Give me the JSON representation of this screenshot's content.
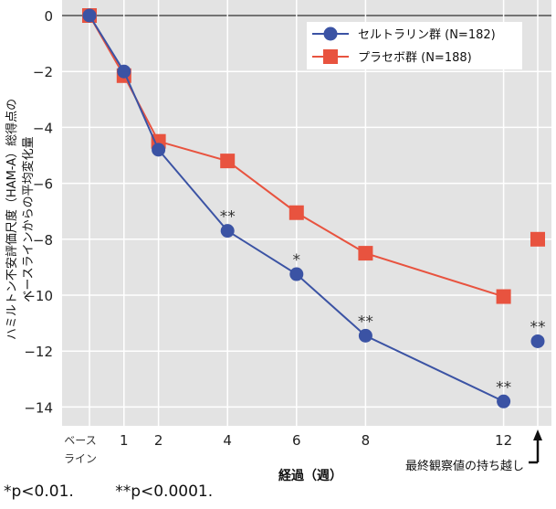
{
  "chart_data": {
    "type": "line",
    "ylabel_line1": "ハミルトン不安評価尺度（HAM-A）総得点の",
    "ylabel_line2": "ベースラインからの平均変化量",
    "xlabel": "経過（週）",
    "x": [
      0,
      1,
      2,
      4,
      6,
      8,
      12
    ],
    "x_tick_labels": [
      "ベース",
      "1",
      "2",
      "4",
      "6",
      "8",
      "12"
    ],
    "x_baseline_label_line2": "ライン",
    "locf_label": "最終観察値の持ち越し",
    "ylim": [
      -15,
      0.5
    ],
    "y_ticks": [
      0,
      -2,
      -4,
      -6,
      -8,
      -10,
      -12,
      -14
    ],
    "y_tick_labels": [
      "0",
      "−2",
      "−4",
      "−6",
      "−8",
      "−10",
      "−12",
      "−14"
    ],
    "grid": true,
    "legend_position": "top-right",
    "series": [
      {
        "name": "セルトラリン群 (N=182)",
        "color": "#3b53a4",
        "marker": "circle",
        "values": [
          0,
          -2.0,
          -4.8,
          -7.7,
          -9.25,
          -11.45,
          -13.8
        ],
        "locf": -11.65,
        "annotations": [
          "",
          "",
          "",
          "**",
          "*",
          "**",
          "**"
        ],
        "locf_annotation": "**"
      },
      {
        "name": "プラセボ群 (N=188)",
        "color": "#e8533f",
        "marker": "square",
        "values": [
          0,
          -2.15,
          -4.5,
          -5.2,
          -7.05,
          -8.5,
          -10.05
        ],
        "locf": -8.0,
        "annotations": [
          "",
          "",
          "",
          "",
          "",
          "",
          ""
        ],
        "locf_annotation": ""
      }
    ]
  },
  "footnotes": [
    "*p<0.01.",
    "**p<0.0001."
  ]
}
